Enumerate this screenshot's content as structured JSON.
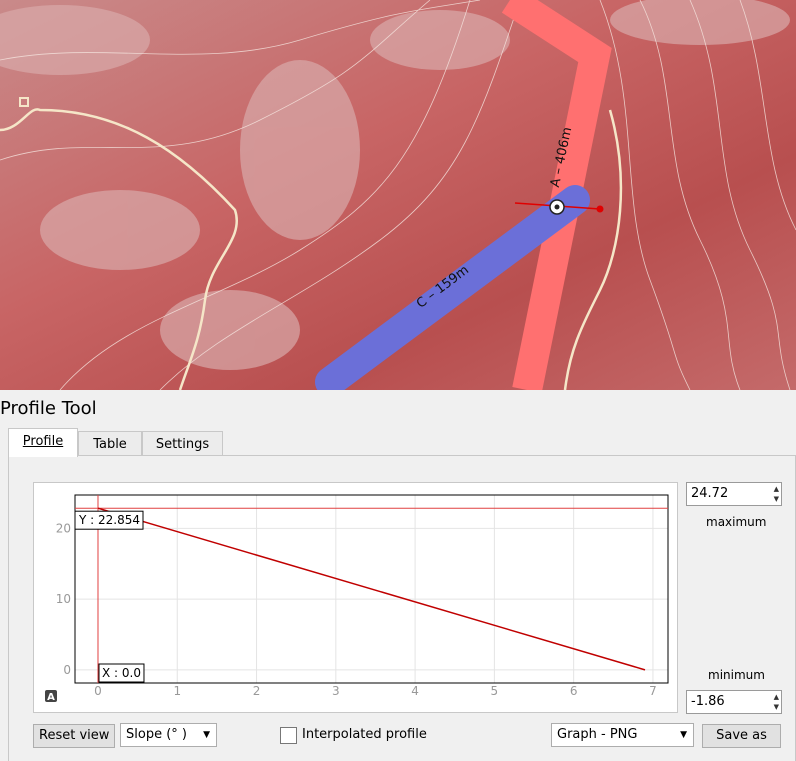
{
  "map": {
    "labels": [
      "A – 406m",
      "C – 159m"
    ]
  },
  "panel_title": "Profile Tool",
  "tabs": [
    "Profile",
    "Table",
    "Settings"
  ],
  "chart_data": {
    "type": "line",
    "x": [
      0,
      6.9
    ],
    "series": [
      {
        "color": "#c00000",
        "values": [
          22.854,
          0
        ]
      }
    ],
    "xlim": [
      -0.29,
      7.19
    ],
    "ylim": [
      -1.86,
      24.72
    ],
    "xticks": [
      0,
      1,
      2,
      3,
      4,
      5,
      6,
      7
    ],
    "yticks": [
      0,
      10,
      20
    ],
    "grid": true,
    "cursor": {
      "x": 0,
      "y": 22.854,
      "x_label": "X : 0.0",
      "y_label": "Y : 22.854",
      "color": "#e04040"
    },
    "icon": "A"
  },
  "controls": {
    "maximum_label": "maximum",
    "minimum_label": "minimum",
    "reset_view": "Reset view",
    "slope": "Slope (° )",
    "interpolated": "Interpolated profile",
    "export_format": "Graph - PNG",
    "save_as": "Save as"
  }
}
